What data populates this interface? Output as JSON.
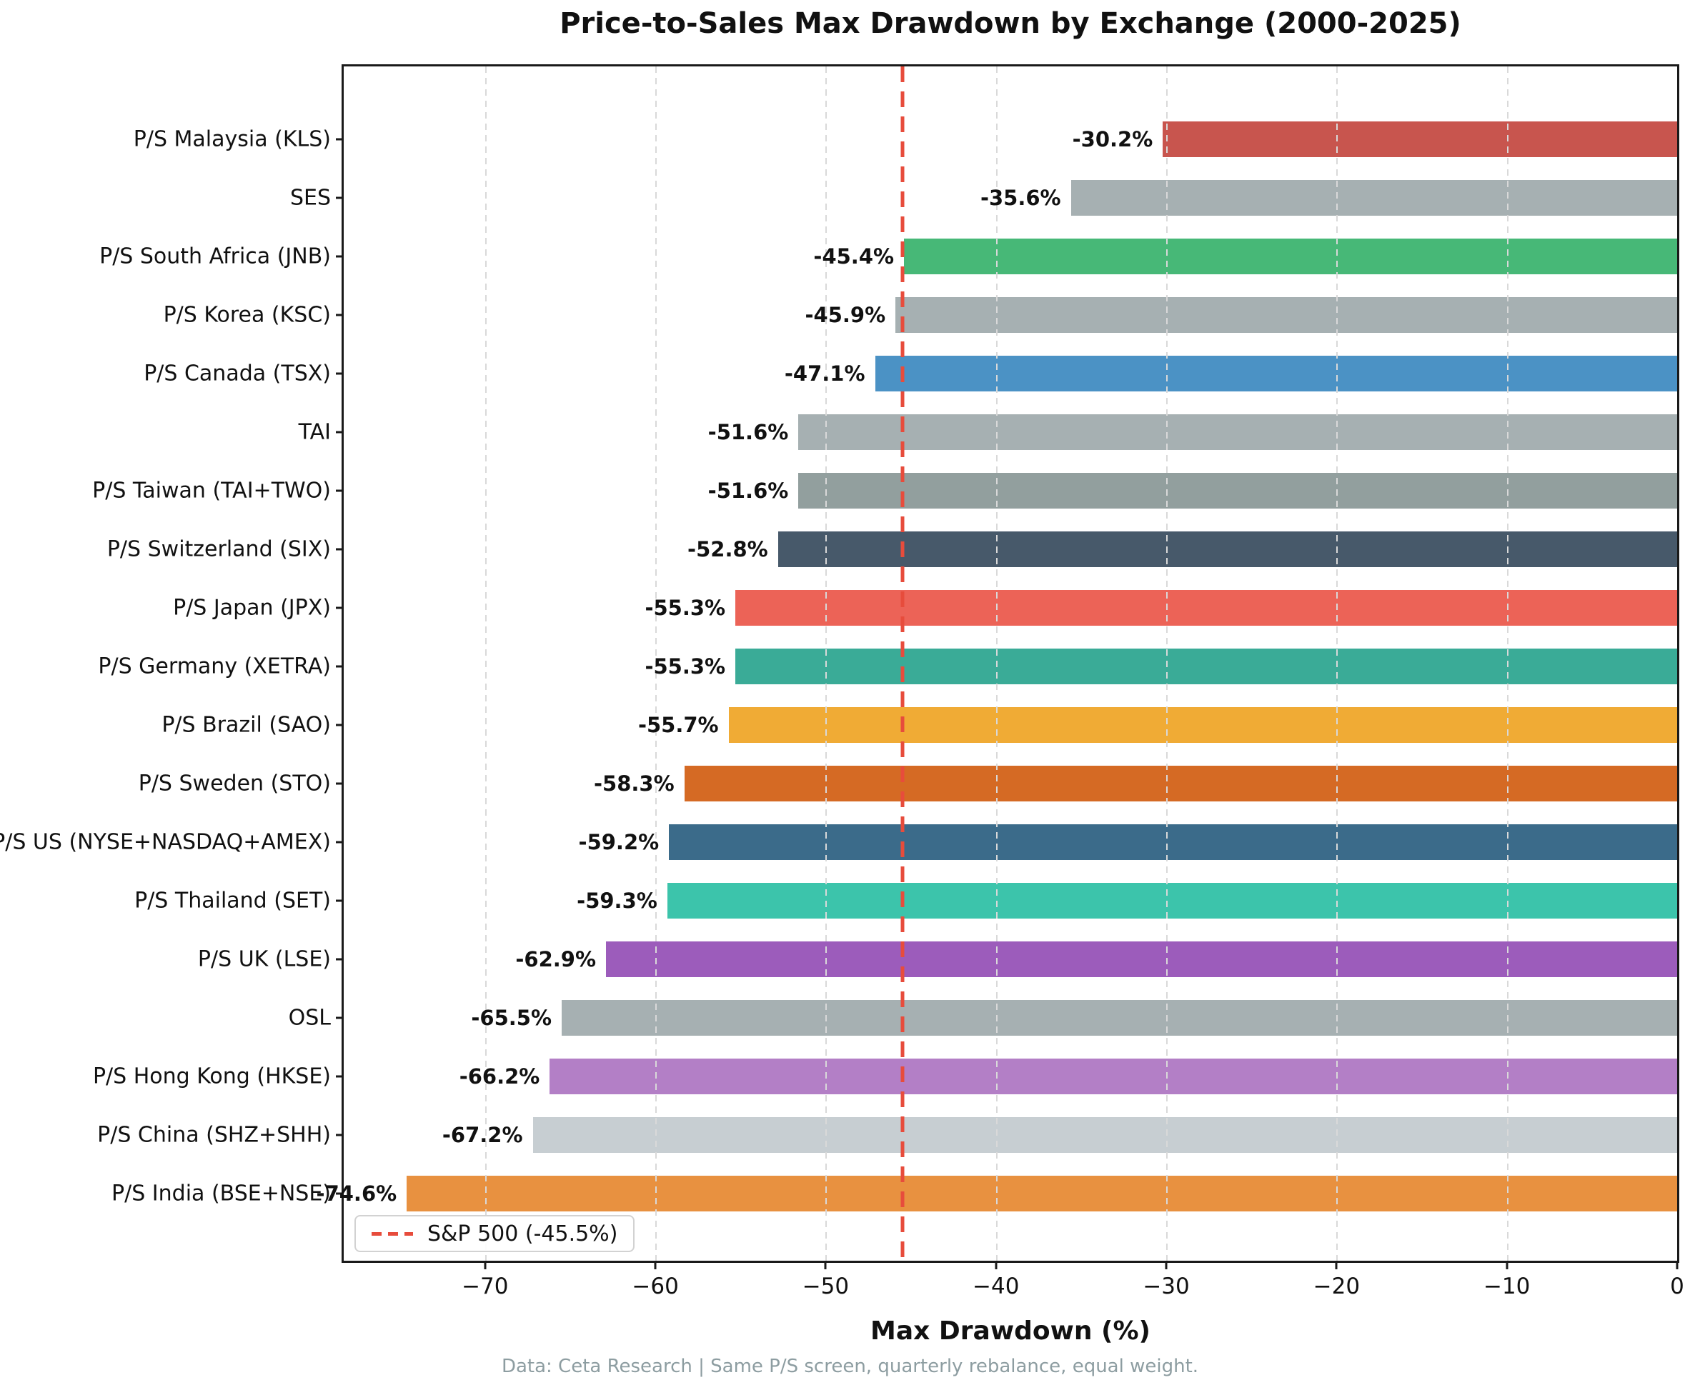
{
  "title": "Price-to-Sales Max Drawdown by Exchange (2000-2025)",
  "xlabel": "Max Drawdown (%)",
  "footer": "Data: Ceta Research | Same P/S screen, quarterly rebalance, equal weight.",
  "legend": {
    "label": "S&P 500 (-45.5%)",
    "color": "#e74c3c"
  },
  "chart_data": {
    "type": "bar",
    "orientation": "horizontal",
    "title": "Price-to-Sales Max Drawdown by Exchange (2000-2025)",
    "xlabel": "Max Drawdown (%)",
    "categories": [
      "P/S Malaysia (KLS)",
      "SES",
      "P/S South Africa (JNB)",
      "P/S Korea (KSC)",
      "P/S Canada (TSX)",
      "TAI",
      "P/S Taiwan (TAI+TWO)",
      "P/S Switzerland (SIX)",
      "P/S Japan (JPX)",
      "P/S Germany (XETRA)",
      "P/S Brazil (SAO)",
      "P/S Sweden (STO)",
      "P/S US (NYSE+NASDAQ+AMEX)",
      "P/S Thailand (SET)",
      "P/S UK (LSE)",
      "OSL",
      "P/S Hong Kong (HKSE)",
      "P/S China (SHZ+SHH)",
      "P/S India (BSE+NSE)"
    ],
    "values": [
      -30.2,
      -35.6,
      -45.4,
      -45.9,
      -47.1,
      -51.6,
      -51.6,
      -52.8,
      -55.3,
      -55.3,
      -55.7,
      -58.3,
      -59.2,
      -59.3,
      -62.9,
      -65.5,
      -66.2,
      -67.2,
      -74.6
    ],
    "value_labels": [
      "-30.2%",
      "-35.6%",
      "-45.4%",
      "-45.9%",
      "-47.1%",
      "-51.6%",
      "-51.6%",
      "-52.8%",
      "-55.3%",
      "-55.3%",
      "-55.7%",
      "-58.3%",
      "-59.2%",
      "-59.3%",
      "-62.9%",
      "-65.5%",
      "-66.2%",
      "-67.2%",
      "-74.6%"
    ],
    "bar_colors": [
      "#c8554e",
      "#a6b0b2",
      "#47b877",
      "#a6b0b2",
      "#4b92c5",
      "#a6b0b2",
      "#929f9e",
      "#47596a",
      "#ec6357",
      "#3aab97",
      "#f0ab35",
      "#d56a24",
      "#3b6b8a",
      "#3cc4ab",
      "#9c5cbb",
      "#a6b0b2",
      "#b37fc6",
      "#c7ced2",
      "#e89140"
    ],
    "xlim": [
      -78.3,
      0
    ],
    "xticks": [
      -70,
      -60,
      -50,
      -40,
      -30,
      -20,
      -10,
      0
    ],
    "xtick_labels": [
      "−70",
      "−60",
      "−50",
      "−40",
      "−30",
      "−20",
      "−10",
      "0"
    ],
    "grid": "vertical dashed, drawn over bars",
    "grid_color": "#d9d9d9",
    "legend_position": "lower left",
    "reference_line": {
      "label": "S&P 500 (-45.5%)",
      "value": -45.5,
      "style": "dashed",
      "color": "#e74c3c"
    }
  }
}
